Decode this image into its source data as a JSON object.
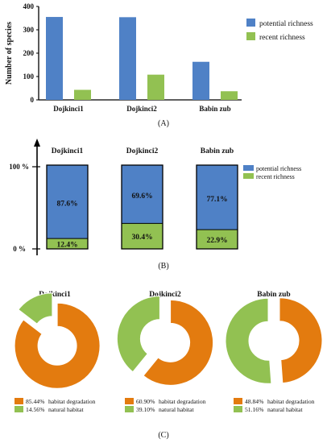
{
  "colors": {
    "potential": "#4f81c6",
    "recent": "#92c152",
    "degradation": "#e37b0f",
    "natural": "#92c152"
  },
  "chart_data": [
    {
      "type": "bar",
      "panel": "(A)",
      "categories": [
        "Dojkinci1",
        "Dojkinci2",
        "Babin zub"
      ],
      "series": [
        {
          "name": "potential richness",
          "values": [
            355,
            354,
            163
          ]
        },
        {
          "name": "recent richness",
          "values": [
            43,
            108,
            37
          ]
        }
      ],
      "ylabel": "Number of species",
      "yticks": [
        "0",
        "100",
        "200",
        "300",
        "400"
      ],
      "ylim": [
        0,
        400
      ],
      "legend_position": "right"
    },
    {
      "type": "bar",
      "stacked": true,
      "panel": "(B)",
      "categories": [
        "Dojkinci1",
        "Dojkinci2",
        "Babin zub"
      ],
      "series": [
        {
          "name": "potential richness",
          "values": [
            87.6,
            69.6,
            77.1
          ],
          "labels": [
            "87.6%",
            "69.6%",
            "77.1%"
          ]
        },
        {
          "name": "recent richness",
          "values": [
            12.4,
            30.4,
            22.9
          ],
          "labels": [
            "12.4%",
            "30.4%",
            "22.9%"
          ]
        }
      ],
      "axis_labels": [
        "100 %",
        "0 %"
      ],
      "ylim": [
        0,
        100
      ],
      "legend_position": "right"
    },
    {
      "type": "pie",
      "donut": true,
      "panel": "(C)",
      "charts": [
        {
          "title": "Dojkinci1",
          "slices": [
            {
              "name": "habitat degradation",
              "value": 85.44,
              "label": "85.44%"
            },
            {
              "name": "natural habitat",
              "value": 14.56,
              "label": "14.56%"
            }
          ]
        },
        {
          "title": "Dojkinci2",
          "slices": [
            {
              "name": "habitat degradation",
              "value": 60.9,
              "label": "60.90%"
            },
            {
              "name": "natural habitat",
              "value": 39.1,
              "label": "39.10%"
            }
          ]
        },
        {
          "title": "Babin zub",
          "slices": [
            {
              "name": "habitat degradation",
              "value": 48.84,
              "label": "48.84%"
            },
            {
              "name": "natural habitat",
              "value": 51.16,
              "label": "51.16%"
            }
          ]
        }
      ],
      "legend_position": "bottom"
    }
  ]
}
